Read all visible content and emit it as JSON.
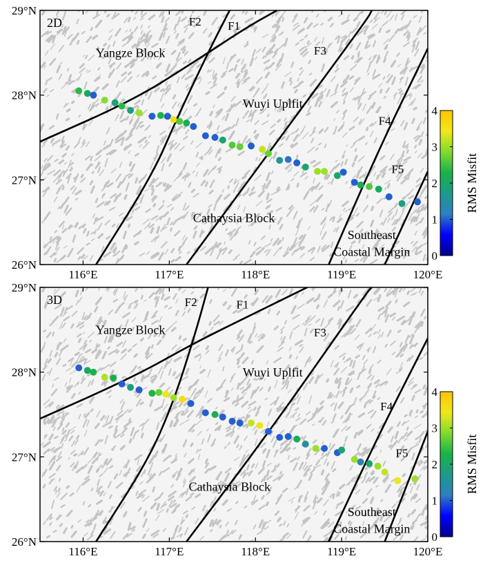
{
  "colors": {
    "background": "#f4f4f4",
    "relief": "#c4c4c4",
    "fault_line": "#000000",
    "colormap": [
      "#00008b",
      "#0000ff",
      "#2e7fc0",
      "#1e9a8a",
      "#18b24a",
      "#7fdc2c",
      "#f0e81a",
      "#ffc400"
    ]
  },
  "colorbar": {
    "title": "RMS Misfit",
    "min": 0,
    "max": 4,
    "ticks": [
      "0",
      "1",
      "2",
      "3",
      "4"
    ]
  },
  "axes": {
    "lon_range": [
      115.5,
      120.0
    ],
    "lat_range": [
      26.0,
      29.0
    ],
    "x_ticks": [
      {
        "value": 116,
        "label": "116°E"
      },
      {
        "value": 117,
        "label": "117°E"
      },
      {
        "value": 118,
        "label": "118°E"
      },
      {
        "value": 119,
        "label": "119°E"
      },
      {
        "value": 120,
        "label": "120°E"
      }
    ],
    "y_ticks": [
      {
        "value": 26,
        "label": "26°N"
      },
      {
        "value": 27,
        "label": "27°N"
      },
      {
        "value": 28,
        "label": "28°N"
      },
      {
        "value": 29,
        "label": "29°N"
      }
    ]
  },
  "panels": [
    {
      "id": "2d",
      "label": "2D",
      "regions": [
        {
          "id": "yangze",
          "text": "Yangze Block",
          "lon": 116.55,
          "lat": 28.45
        },
        {
          "id": "wuyi",
          "text": "Wuyi Uplfit",
          "lon": 118.2,
          "lat": 27.85
        },
        {
          "id": "cathaysia",
          "text": "Cathaysia Block",
          "lon": 117.75,
          "lat": 26.5
        },
        {
          "id": "southeast",
          "text": "Southeast",
          "lon": 119.35,
          "lat": 26.3
        },
        {
          "id": "coastal",
          "text": "Coastal Margin",
          "lon": 119.35,
          "lat": 26.1
        }
      ],
      "faults": [
        {
          "id": "f1",
          "label": "F1",
          "label_lon": 117.75,
          "label_lat": 28.77,
          "points": [
            [
              115.5,
              27.45
            ],
            [
              116.6,
              27.95
            ],
            [
              117.3,
              28.4
            ],
            [
              117.9,
              28.8
            ],
            [
              118.25,
              29.0
            ]
          ]
        },
        {
          "id": "f2",
          "label": "F2",
          "label_lon": 117.3,
          "label_lat": 28.82,
          "points": [
            [
              116.15,
              26.0
            ],
            [
              116.8,
              27.05
            ],
            [
              117.1,
              27.75
            ],
            [
              117.45,
              28.5
            ],
            [
              117.7,
              29.0
            ]
          ]
        },
        {
          "id": "f3",
          "label": "F3",
          "label_lon": 118.75,
          "label_lat": 28.48,
          "points": [
            [
              117.2,
              26.0
            ],
            [
              118.25,
              27.45
            ],
            [
              119.3,
              28.9
            ],
            [
              119.35,
              29.0
            ]
          ]
        },
        {
          "id": "f4",
          "label": "F4",
          "label_lon": 119.5,
          "label_lat": 27.65,
          "points": [
            [
              118.85,
              26.0
            ],
            [
              119.45,
              27.4
            ],
            [
              120.0,
              28.55
            ]
          ]
        },
        {
          "id": "f5",
          "label": "F5",
          "label_lon": 119.65,
          "label_lat": 27.08,
          "points": [
            [
              119.5,
              26.0
            ],
            [
              120.0,
              27.1
            ]
          ]
        }
      ],
      "stations": [
        {
          "lon": 115.95,
          "lat": 28.05,
          "rms": 2.4
        },
        {
          "lon": 116.05,
          "lat": 28.02,
          "rms": 2.1
        },
        {
          "lon": 116.12,
          "lat": 28.0,
          "rms": 1.0
        },
        {
          "lon": 116.25,
          "lat": 27.94,
          "rms": 2.9
        },
        {
          "lon": 116.37,
          "lat": 27.91,
          "rms": 1.9
        },
        {
          "lon": 116.45,
          "lat": 27.87,
          "rms": 2.4
        },
        {
          "lon": 116.55,
          "lat": 27.82,
          "rms": 1.8
        },
        {
          "lon": 116.65,
          "lat": 27.79,
          "rms": 3.0
        },
        {
          "lon": 116.8,
          "lat": 27.75,
          "rms": 1.0
        },
        {
          "lon": 116.9,
          "lat": 27.76,
          "rms": 2.3
        },
        {
          "lon": 116.98,
          "lat": 27.75,
          "rms": 1.0
        },
        {
          "lon": 117.05,
          "lat": 27.71,
          "rms": 3.6
        },
        {
          "lon": 117.12,
          "lat": 27.69,
          "rms": 2.6
        },
        {
          "lon": 117.2,
          "lat": 27.67,
          "rms": 2.2
        },
        {
          "lon": 117.28,
          "lat": 27.63,
          "rms": 1.0
        },
        {
          "lon": 117.42,
          "lat": 27.52,
          "rms": 1.0
        },
        {
          "lon": 117.53,
          "lat": 27.5,
          "rms": 1.0
        },
        {
          "lon": 117.62,
          "lat": 27.47,
          "rms": 2.0
        },
        {
          "lon": 117.73,
          "lat": 27.41,
          "rms": 2.6
        },
        {
          "lon": 117.82,
          "lat": 27.39,
          "rms": 2.7
        },
        {
          "lon": 117.95,
          "lat": 27.4,
          "rms": 1.0
        },
        {
          "lon": 118.08,
          "lat": 27.36,
          "rms": 3.2
        },
        {
          "lon": 118.15,
          "lat": 27.31,
          "rms": 2.7
        },
        {
          "lon": 118.28,
          "lat": 27.23,
          "rms": 1.6
        },
        {
          "lon": 118.38,
          "lat": 27.24,
          "rms": 1.1
        },
        {
          "lon": 118.48,
          "lat": 27.2,
          "rms": 1.0
        },
        {
          "lon": 118.58,
          "lat": 27.15,
          "rms": 1.9
        },
        {
          "lon": 118.72,
          "lat": 27.1,
          "rms": 3.0
        },
        {
          "lon": 118.8,
          "lat": 27.1,
          "rms": 3.0
        },
        {
          "lon": 118.95,
          "lat": 27.05,
          "rms": 2.0
        },
        {
          "lon": 119.02,
          "lat": 27.09,
          "rms": 1.0
        },
        {
          "lon": 119.15,
          "lat": 26.97,
          "rms": 1.0
        },
        {
          "lon": 119.22,
          "lat": 26.94,
          "rms": 2.2
        },
        {
          "lon": 119.32,
          "lat": 26.92,
          "rms": 2.6
        },
        {
          "lon": 119.43,
          "lat": 26.89,
          "rms": 2.1
        },
        {
          "lon": 119.55,
          "lat": 26.8,
          "rms": 1.0
        },
        {
          "lon": 119.7,
          "lat": 26.72,
          "rms": 1.8
        },
        {
          "lon": 119.88,
          "lat": 26.74,
          "rms": 1.0
        }
      ]
    },
    {
      "id": "3d",
      "label": "3D",
      "regions": [
        {
          "id": "yangze",
          "text": "Yangze Block",
          "lon": 116.55,
          "lat": 28.45
        },
        {
          "id": "wuyi",
          "text": "Wuyi Uplfit",
          "lon": 118.2,
          "lat": 27.95
        },
        {
          "id": "cathaysia",
          "text": "Cathaysia Block",
          "lon": 117.7,
          "lat": 26.6
        },
        {
          "id": "southeast",
          "text": "Southeast",
          "lon": 119.35,
          "lat": 26.3
        },
        {
          "id": "coastal",
          "text": "Coastal Margin",
          "lon": 119.35,
          "lat": 26.1
        }
      ],
      "faults": [
        {
          "id": "f1",
          "label": "F1",
          "label_lon": 117.85,
          "label_lat": 28.75,
          "points": [
            [
              115.5,
              27.45
            ],
            [
              116.6,
              27.95
            ],
            [
              117.3,
              28.35
            ],
            [
              118.0,
              28.7
            ],
            [
              118.6,
              29.0
            ]
          ]
        },
        {
          "id": "f2",
          "label": "F2",
          "label_lon": 117.25,
          "label_lat": 28.78,
          "points": [
            [
              116.15,
              26.0
            ],
            [
              116.75,
              26.95
            ],
            [
              117.05,
              27.65
            ],
            [
              117.3,
              28.45
            ],
            [
              117.45,
              29.0
            ]
          ]
        },
        {
          "id": "f3",
          "label": "F3",
          "label_lon": 118.75,
          "label_lat": 28.42,
          "points": [
            [
              117.2,
              26.0
            ],
            [
              118.2,
              27.35
            ],
            [
              119.3,
              28.95
            ],
            [
              119.35,
              29.0
            ]
          ]
        },
        {
          "id": "f4",
          "label": "F4",
          "label_lon": 119.52,
          "label_lat": 27.55,
          "points": [
            [
              118.85,
              26.0
            ],
            [
              119.45,
              27.3
            ],
            [
              120.0,
              28.4
            ]
          ]
        },
        {
          "id": "f5",
          "label": "F5",
          "label_lon": 119.7,
          "label_lat": 27.0,
          "points": [
            [
              119.5,
              26.0
            ],
            [
              120.0,
              27.3
            ]
          ]
        }
      ],
      "stations": [
        {
          "lon": 115.95,
          "lat": 28.05,
          "rms": 1.0
        },
        {
          "lon": 116.05,
          "lat": 28.02,
          "rms": 2.1
        },
        {
          "lon": 116.12,
          "lat": 28.0,
          "rms": 2.3
        },
        {
          "lon": 116.25,
          "lat": 27.94,
          "rms": 3.1
        },
        {
          "lon": 116.35,
          "lat": 27.93,
          "rms": 2.2
        },
        {
          "lon": 116.45,
          "lat": 27.86,
          "rms": 1.0
        },
        {
          "lon": 116.55,
          "lat": 27.82,
          "rms": 1.8
        },
        {
          "lon": 116.65,
          "lat": 27.79,
          "rms": 1.0
        },
        {
          "lon": 116.8,
          "lat": 27.75,
          "rms": 2.3
        },
        {
          "lon": 116.88,
          "lat": 27.76,
          "rms": 2.7
        },
        {
          "lon": 116.96,
          "lat": 27.74,
          "rms": 3.4
        },
        {
          "lon": 117.05,
          "lat": 27.7,
          "rms": 3.0
        },
        {
          "lon": 117.15,
          "lat": 27.68,
          "rms": 3.6
        },
        {
          "lon": 117.25,
          "lat": 27.63,
          "rms": 1.0
        },
        {
          "lon": 117.42,
          "lat": 27.52,
          "rms": 1.0
        },
        {
          "lon": 117.53,
          "lat": 27.5,
          "rms": 2.2
        },
        {
          "lon": 117.62,
          "lat": 27.47,
          "rms": 1.0
        },
        {
          "lon": 117.73,
          "lat": 27.42,
          "rms": 1.0
        },
        {
          "lon": 117.82,
          "lat": 27.4,
          "rms": 1.0
        },
        {
          "lon": 117.95,
          "lat": 27.4,
          "rms": 3.2
        },
        {
          "lon": 118.05,
          "lat": 27.37,
          "rms": 3.5
        },
        {
          "lon": 118.15,
          "lat": 27.3,
          "rms": 1.0
        },
        {
          "lon": 118.28,
          "lat": 27.23,
          "rms": 1.0
        },
        {
          "lon": 118.38,
          "lat": 27.24,
          "rms": 1.0
        },
        {
          "lon": 118.48,
          "lat": 27.21,
          "rms": 2.2
        },
        {
          "lon": 118.58,
          "lat": 27.15,
          "rms": 1.5
        },
        {
          "lon": 118.7,
          "lat": 27.1,
          "rms": 3.0
        },
        {
          "lon": 118.8,
          "lat": 27.1,
          "rms": 1.0
        },
        {
          "lon": 118.95,
          "lat": 27.05,
          "rms": 1.0
        },
        {
          "lon": 119.0,
          "lat": 27.08,
          "rms": 1.9
        },
        {
          "lon": 119.15,
          "lat": 26.97,
          "rms": 3.0
        },
        {
          "lon": 119.22,
          "lat": 26.94,
          "rms": 1.3
        },
        {
          "lon": 119.32,
          "lat": 26.92,
          "rms": 2.0
        },
        {
          "lon": 119.42,
          "lat": 26.89,
          "rms": 3.0
        },
        {
          "lon": 119.5,
          "lat": 26.82,
          "rms": 3.2
        },
        {
          "lon": 119.65,
          "lat": 26.72,
          "rms": 3.4
        },
        {
          "lon": 119.85,
          "lat": 26.74,
          "rms": 3.0
        }
      ]
    }
  ]
}
